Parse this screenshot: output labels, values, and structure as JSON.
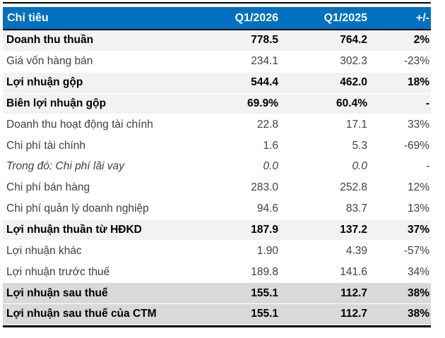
{
  "table": {
    "header": {
      "label": "Chỉ tiêu",
      "col_q1_2026": "Q1/2026",
      "col_q1_2025": "Q1/2025",
      "col_change": "+/-"
    },
    "rows": [
      {
        "label": "Doanh thu thuần",
        "q1_2026": "778.5",
        "q1_2025": "764.2",
        "change": "2%",
        "style": "subtotal"
      },
      {
        "label": "Giá vốn hàng bán",
        "q1_2026": "234.1",
        "q1_2025": "302.3",
        "change": "-23%",
        "style": "normal"
      },
      {
        "label": "Lợi nhuận gộp",
        "q1_2026": "544.4",
        "q1_2025": "462.0",
        "change": "18%",
        "style": "subtotal"
      },
      {
        "label": "Biên lợi nhuận gộp",
        "q1_2026": "69.9%",
        "q1_2025": "60.4%",
        "change": "-",
        "style": "subtotal"
      },
      {
        "label": "Doanh thu hoạt động tài chính",
        "q1_2026": "22.8",
        "q1_2025": "17.1",
        "change": "33%",
        "style": "normal"
      },
      {
        "label": "Chi phí tài chính",
        "q1_2026": "1.6",
        "q1_2025": "5.3",
        "change": "-69%",
        "style": "normal"
      },
      {
        "label": "Trong đó: Chi phí lãi vay",
        "q1_2026": "0.0",
        "q1_2025": "0.0",
        "change": "-",
        "style": "italic"
      },
      {
        "label": "Chi phí bán hàng",
        "q1_2026": "283.0",
        "q1_2025": "252.8",
        "change": "12%",
        "style": "normal"
      },
      {
        "label": "Chi phí quản lý doanh nghiệp",
        "q1_2026": "94.6",
        "q1_2025": "83.7",
        "change": "13%",
        "style": "normal"
      },
      {
        "label": "Lợi nhuận thuần từ HĐKD",
        "q1_2026": "187.9",
        "q1_2025": "137.2",
        "change": "37%",
        "style": "subtotal"
      },
      {
        "label": "Lợi nhuận khác",
        "q1_2026": "1.90",
        "q1_2025": "4.39",
        "change": "-57%",
        "style": "normal"
      },
      {
        "label": "Lợi nhuận trước thuế",
        "q1_2026": "189.8",
        "q1_2025": "141.6",
        "change": "34%",
        "style": "normal"
      },
      {
        "label": "Lợi nhuận sau thuế",
        "q1_2026": "155.1",
        "q1_2025": "112.7",
        "change": "38%",
        "style": "total"
      },
      {
        "label": "Lợi nhuận sau thuế của CTM",
        "q1_2026": "155.1",
        "q1_2025": "112.7",
        "change": "38%",
        "style": "total"
      }
    ]
  },
  "colors": {
    "header_bg": "#0070C0",
    "header_text": "#FFFFFF",
    "subtotal_row_bg": "#F2F2F2",
    "total_row_bg": "#D9D9D9",
    "normal_text": "#404040",
    "bold_text": "#000000",
    "rule": "#000000"
  }
}
